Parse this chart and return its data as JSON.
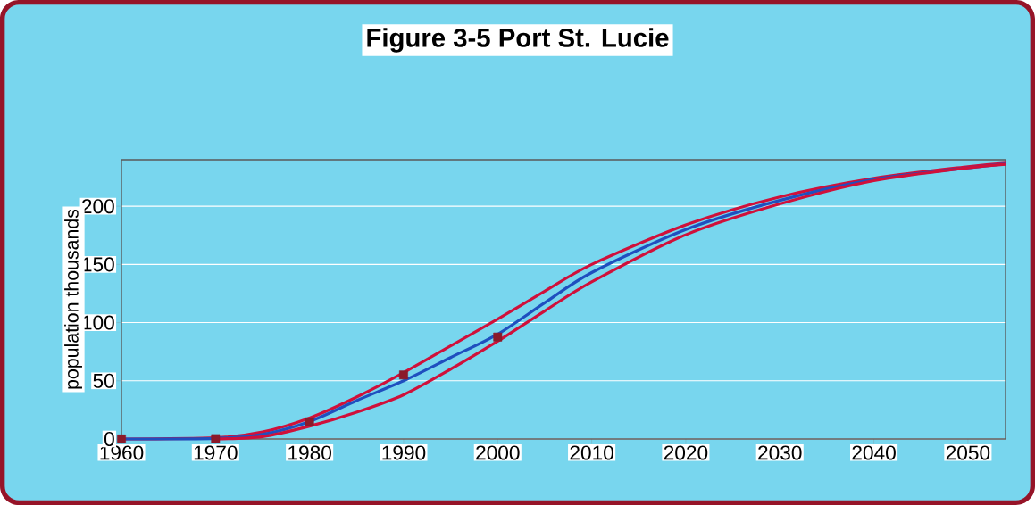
{
  "chart_data": {
    "type": "line",
    "title": "Figure 3-5  Port St. Lucie",
    "ylabel": "population thousands",
    "xlim": [
      1960,
      2054
    ],
    "ylim": [
      0,
      240
    ],
    "xticks": [
      1960,
      1970,
      1980,
      1990,
      2000,
      2010,
      2020,
      2030,
      2040,
      2050
    ],
    "yticks": [
      0,
      50,
      100,
      150,
      200
    ],
    "grid": "y",
    "line_style": "solid",
    "series": [
      {
        "color": "#d0103a",
        "marker": "none",
        "x": [
          1960,
          1970,
          1975,
          1980,
          1985,
          1990,
          1995,
          2000,
          2005,
          2010,
          2020,
          2030,
          2040,
          2050,
          2054
        ],
        "values": [
          0,
          1,
          6,
          18,
          36,
          57,
          80,
          103,
          127,
          150,
          184,
          208,
          224,
          234,
          237
        ]
      },
      {
        "color": "#1f4fbf",
        "marker": "none",
        "x": [
          1960,
          1970,
          1975,
          1980,
          1985,
          1990,
          1995,
          2000,
          2005,
          2010,
          2020,
          2030,
          2040,
          2050,
          2054
        ],
        "values": [
          0,
          0.5,
          4,
          15,
          33,
          50,
          70,
          90,
          117,
          143,
          180,
          205,
          223,
          233,
          236.5
        ]
      },
      {
        "color": "#d0103a",
        "marker": "none",
        "x": [
          1970,
          1975,
          1980,
          1985,
          1990,
          1995,
          2000,
          2005,
          2010,
          2020,
          2030,
          2040,
          2050,
          2054
        ],
        "values": [
          0,
          2,
          11,
          23,
          38,
          60,
          84,
          110,
          135,
          175.5,
          202,
          222,
          233,
          236
        ]
      },
      {
        "type": "scatter",
        "color": "#8b1a2a",
        "marker": "square",
        "x": [
          1960,
          1970,
          1980,
          1990,
          2000
        ],
        "values": [
          0,
          0.3,
          14.7,
          55,
          87.6
        ]
      }
    ]
  }
}
